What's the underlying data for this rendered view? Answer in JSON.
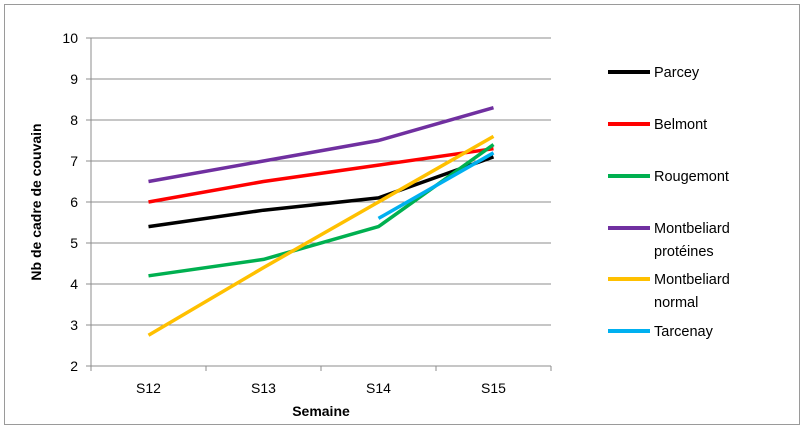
{
  "chart_data": {
    "type": "line",
    "title": "",
    "xlabel": "Semaine",
    "ylabel": "Nb de cadre de couvain",
    "categories": [
      "S12",
      "S13",
      "S14",
      "S15"
    ],
    "ylim": [
      2,
      10
    ],
    "yticks": [
      "2",
      "3",
      "4",
      "5",
      "6",
      "7",
      "8",
      "9",
      "10"
    ],
    "grid": true,
    "legend_position": "right",
    "series": [
      {
        "name": "Parcey",
        "label_lines": [
          "Parcey"
        ],
        "color": "#000000",
        "values": [
          5.4,
          5.8,
          6.1,
          7.1
        ]
      },
      {
        "name": "Belmont",
        "label_lines": [
          "Belmont"
        ],
        "color": "#ff0000",
        "values": [
          6.0,
          6.5,
          6.9,
          7.3
        ]
      },
      {
        "name": "Rougemont",
        "label_lines": [
          "Rougemont"
        ],
        "color": "#00b050",
        "values": [
          4.2,
          4.6,
          5.4,
          7.4
        ]
      },
      {
        "name": "Montbeliard protéines",
        "label_lines": [
          "Montbeliard",
          "protéines"
        ],
        "color": "#7030a0",
        "values": [
          6.5,
          7.0,
          7.5,
          8.3
        ]
      },
      {
        "name": "Montbeliard normal",
        "label_lines": [
          "Montbeliard",
          "normal"
        ],
        "color": "#ffc000",
        "values": [
          2.75,
          4.4,
          6.0,
          7.6
        ]
      },
      {
        "name": "Tarcenay",
        "label_lines": [
          "Tarcenay"
        ],
        "color": "#00b0f0",
        "values": [
          null,
          null,
          5.6,
          7.2
        ]
      }
    ]
  }
}
